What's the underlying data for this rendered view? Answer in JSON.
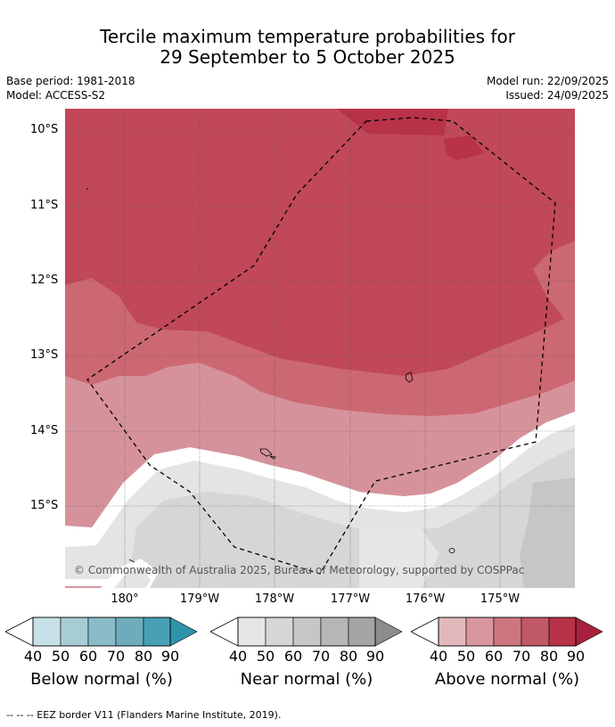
{
  "title_line1": "Tercile maximum temperature probabilities for",
  "title_line2": "29 September to 5 October 2025",
  "meta": {
    "base_period": "Base period: 1981-2018",
    "model": "Model: ACCESS-S2",
    "model_run": "Model run: 22/09/2025",
    "issued": "Issued: 24/09/2025"
  },
  "map": {
    "lat_labels": [
      "10°S",
      "11°S",
      "12°S",
      "13°S",
      "14°S",
      "15°S"
    ],
    "lon_labels": [
      "180°",
      "179°W",
      "178°W",
      "177°W",
      "176°W",
      "175°W"
    ],
    "lat_range": [
      -16.1,
      -9.7
    ],
    "lon_range": [
      -180.8,
      -174.0
    ],
    "copyright": "© Commonwealth of Australia 2025, Bureau of Meteorology, supported by COSPPac"
  },
  "legends": [
    {
      "label": "Below normal (%)",
      "ticks": [
        "40",
        "50",
        "60",
        "70",
        "80",
        "90"
      ],
      "colors": [
        "#c8e1e9",
        "#a8ccd4",
        "#8abcc8",
        "#6eacbc",
        "#48a0b4",
        "#2e94ab"
      ]
    },
    {
      "label": "Near normal (%)",
      "ticks": [
        "40",
        "50",
        "60",
        "70",
        "80",
        "90"
      ],
      "colors": [
        "#e6e6e6",
        "#d6d6d6",
        "#c6c6c6",
        "#b6b6b6",
        "#a4a4a4",
        "#8c8c8c"
      ]
    },
    {
      "label": "Above normal (%)",
      "ticks": [
        "40",
        "50",
        "60",
        "70",
        "80",
        "90"
      ],
      "colors": [
        "#e3b8bd",
        "#d8979e",
        "#cc7680",
        "#c25966",
        "#b83248",
        "#a8203c"
      ]
    }
  ],
  "footnote": "--  --  -- EEZ border V11 (Flanders Marine Institute, 2019)."
}
